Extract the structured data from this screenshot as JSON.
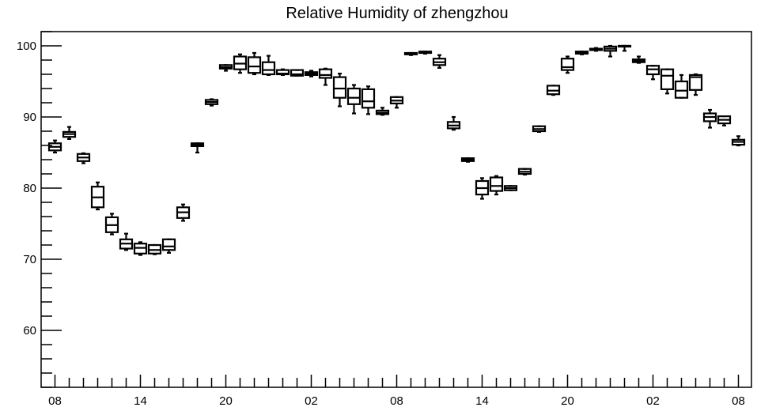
{
  "chart_data": {
    "type": "boxplot",
    "title": "Relative Humidity of zhengzhou",
    "xlabel": "",
    "ylabel": "",
    "ylim": [
      52,
      102
    ],
    "y_ticks": [
      60,
      70,
      80,
      90,
      100
    ],
    "x_tick_labels": [
      "08",
      "14",
      "20",
      "02",
      "08",
      "14",
      "20",
      "02",
      "08"
    ],
    "x_tick_every": 6,
    "grid": false,
    "boxes": [
      {
        "x": 0,
        "min": 85.0,
        "q1": 85.3,
        "median": 85.8,
        "q3": 86.3,
        "max": 86.7
      },
      {
        "x": 1,
        "min": 86.9,
        "q1": 87.2,
        "median": 87.6,
        "q3": 87.9,
        "max": 88.6
      },
      {
        "x": 2,
        "min": 83.5,
        "q1": 83.8,
        "median": 84.3,
        "q3": 84.8,
        "max": 84.9
      },
      {
        "x": 3,
        "min": 77.0,
        "q1": 77.3,
        "median": 78.7,
        "q3": 80.2,
        "max": 80.8
      },
      {
        "x": 4,
        "min": 73.5,
        "q1": 73.8,
        "median": 74.8,
        "q3": 75.9,
        "max": 76.4
      },
      {
        "x": 5,
        "min": 71.3,
        "q1": 71.5,
        "median": 72.2,
        "q3": 72.8,
        "max": 73.6
      },
      {
        "x": 6,
        "min": 70.6,
        "q1": 70.8,
        "median": 71.6,
        "q3": 72.2,
        "max": 72.4
      },
      {
        "x": 7,
        "min": 70.7,
        "q1": 70.8,
        "median": 71.3,
        "q3": 72.0,
        "max": 72.0
      },
      {
        "x": 8,
        "min": 70.9,
        "q1": 71.3,
        "median": 71.8,
        "q3": 72.8,
        "max": 72.8
      },
      {
        "x": 9,
        "min": 75.4,
        "q1": 75.8,
        "median": 76.6,
        "q3": 77.3,
        "max": 77.7
      },
      {
        "x": 10,
        "min": 85.0,
        "q1": 85.9,
        "median": 86.1,
        "q3": 86.3,
        "max": 86.3
      },
      {
        "x": 11,
        "min": 91.6,
        "q1": 91.8,
        "median": 92.1,
        "q3": 92.4,
        "max": 92.5
      },
      {
        "x": 12,
        "min": 96.5,
        "q1": 96.8,
        "median": 97.0,
        "q3": 97.3,
        "max": 97.3
      },
      {
        "x": 13,
        "min": 96.2,
        "q1": 96.7,
        "median": 97.5,
        "q3": 98.5,
        "max": 98.8
      },
      {
        "x": 14,
        "min": 96.0,
        "q1": 96.2,
        "median": 97.1,
        "q3": 98.4,
        "max": 99.0
      },
      {
        "x": 15,
        "min": 95.9,
        "q1": 96.0,
        "median": 96.6,
        "q3": 97.7,
        "max": 98.6
      },
      {
        "x": 16,
        "min": 95.9,
        "q1": 96.0,
        "median": 96.1,
        "q3": 96.6,
        "max": 96.7
      },
      {
        "x": 17,
        "min": 95.8,
        "q1": 95.8,
        "median": 96.0,
        "q3": 96.6,
        "max": 96.6
      },
      {
        "x": 18,
        "min": 95.7,
        "q1": 95.9,
        "median": 96.1,
        "q3": 96.3,
        "max": 96.5
      },
      {
        "x": 19,
        "min": 94.5,
        "q1": 95.5,
        "median": 95.9,
        "q3": 96.7,
        "max": 96.8
      },
      {
        "x": 20,
        "min": 91.5,
        "q1": 92.7,
        "median": 94.0,
        "q3": 95.6,
        "max": 96.1
      },
      {
        "x": 21,
        "min": 90.5,
        "q1": 91.8,
        "median": 92.7,
        "q3": 94.0,
        "max": 94.5
      },
      {
        "x": 22,
        "min": 90.4,
        "q1": 91.3,
        "median": 92.2,
        "q3": 93.9,
        "max": 94.3
      },
      {
        "x": 23,
        "min": 90.3,
        "q1": 90.4,
        "median": 90.6,
        "q3": 90.9,
        "max": 91.3
      },
      {
        "x": 24,
        "min": 91.3,
        "q1": 91.9,
        "median": 92.3,
        "q3": 92.8,
        "max": 92.8
      },
      {
        "x": 25,
        "min": 98.7,
        "q1": 98.8,
        "median": 98.9,
        "q3": 99.0,
        "max": 99.0
      },
      {
        "x": 26,
        "min": 98.9,
        "q1": 99.0,
        "median": 99.1,
        "q3": 99.2,
        "max": 99.2
      },
      {
        "x": 27,
        "min": 96.9,
        "q1": 97.3,
        "median": 97.7,
        "q3": 98.2,
        "max": 98.7
      },
      {
        "x": 28,
        "min": 88.2,
        "q1": 88.4,
        "median": 88.8,
        "q3": 89.3,
        "max": 90.0
      },
      {
        "x": 29,
        "min": 83.7,
        "q1": 83.8,
        "median": 84.0,
        "q3": 84.2,
        "max": 84.2
      },
      {
        "x": 30,
        "min": 78.5,
        "q1": 79.1,
        "median": 80.0,
        "q3": 81.0,
        "max": 81.4
      },
      {
        "x": 31,
        "min": 79.1,
        "q1": 79.6,
        "median": 80.3,
        "q3": 81.5,
        "max": 81.7
      },
      {
        "x": 32,
        "min": 79.7,
        "q1": 79.7,
        "median": 80.0,
        "q3": 80.3,
        "max": 80.3
      },
      {
        "x": 33,
        "min": 81.9,
        "q1": 82.0,
        "median": 82.3,
        "q3": 82.7,
        "max": 82.7
      },
      {
        "x": 34,
        "min": 87.9,
        "q1": 88.0,
        "median": 88.3,
        "q3": 88.7,
        "max": 88.7
      },
      {
        "x": 35,
        "min": 93.1,
        "q1": 93.2,
        "median": 93.7,
        "q3": 94.4,
        "max": 94.4
      },
      {
        "x": 36,
        "min": 96.2,
        "q1": 96.6,
        "median": 97.0,
        "q3": 98.2,
        "max": 98.5
      },
      {
        "x": 37,
        "min": 98.8,
        "q1": 98.9,
        "median": 99.0,
        "q3": 99.2,
        "max": 99.2
      },
      {
        "x": 38,
        "min": 99.3,
        "q1": 99.4,
        "median": 99.5,
        "q3": 99.6,
        "max": 99.7
      },
      {
        "x": 39,
        "min": 98.5,
        "q1": 99.3,
        "median": 99.6,
        "q3": 99.9,
        "max": 100.0
      },
      {
        "x": 40,
        "min": 99.3,
        "q1": 99.9,
        "median": 100.0,
        "q3": 100.0,
        "max": 100.0
      },
      {
        "x": 41,
        "min": 97.6,
        "q1": 97.7,
        "median": 97.9,
        "q3": 98.1,
        "max": 98.5
      },
      {
        "x": 42,
        "min": 95.3,
        "q1": 96.0,
        "median": 96.7,
        "q3": 97.2,
        "max": 97.2
      },
      {
        "x": 43,
        "min": 93.3,
        "q1": 93.9,
        "median": 95.8,
        "q3": 96.7,
        "max": 96.7
      },
      {
        "x": 44,
        "min": 92.7,
        "q1": 92.7,
        "median": 93.7,
        "q3": 95.0,
        "max": 95.9
      },
      {
        "x": 45,
        "min": 93.1,
        "q1": 93.8,
        "median": 95.6,
        "q3": 95.9,
        "max": 96.0
      },
      {
        "x": 46,
        "min": 88.5,
        "q1": 89.4,
        "median": 90.0,
        "q3": 90.5,
        "max": 91.0
      },
      {
        "x": 47,
        "min": 88.8,
        "q1": 89.1,
        "median": 89.6,
        "q3": 90.1,
        "max": 90.1
      },
      {
        "x": 48,
        "min": 86.0,
        "q1": 86.1,
        "median": 86.5,
        "q3": 86.8,
        "max": 87.3
      }
    ]
  }
}
